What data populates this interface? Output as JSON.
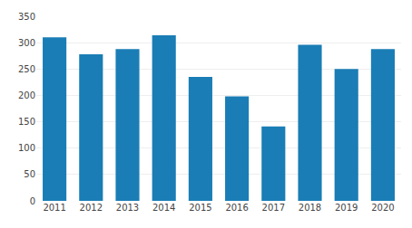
{
  "chart_data": {
    "type": "bar",
    "categories": [
      "2011",
      "2012",
      "2013",
      "2014",
      "2015",
      "2016",
      "2017",
      "2018",
      "2019",
      "2020"
    ],
    "values": [
      310,
      278,
      288,
      314,
      235,
      198,
      141,
      296,
      250,
      288
    ],
    "color": "#1a7db5",
    "ylim": [
      0,
      350
    ],
    "yticks": [
      0,
      50,
      100,
      150,
      200,
      250,
      300,
      350
    ],
    "grid": true
  }
}
